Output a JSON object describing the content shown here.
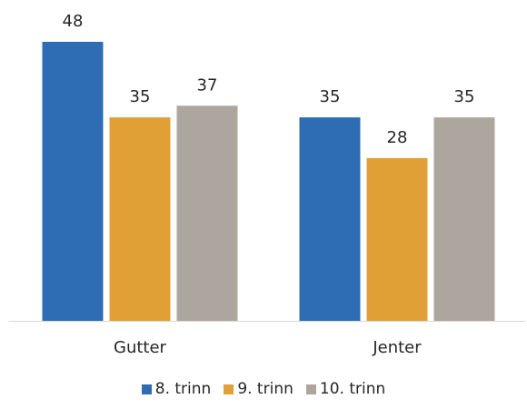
{
  "chart_data": {
    "type": "bar",
    "categories": [
      "Gutter",
      "Jenter"
    ],
    "series": [
      {
        "name": "8. trinn",
        "values": [
          48,
          35
        ],
        "color": "#2E6DB4"
      },
      {
        "name": "9. trinn",
        "values": [
          35,
          28
        ],
        "color": "#E0A036"
      },
      {
        "name": "10. trinn",
        "values": [
          37,
          35
        ],
        "color": "#ADA69E"
      }
    ],
    "ylim": [
      0,
      48
    ],
    "legend_position": "bottom",
    "grid": false,
    "data_labels": true,
    "axis_color": "#D9D9D9"
  }
}
